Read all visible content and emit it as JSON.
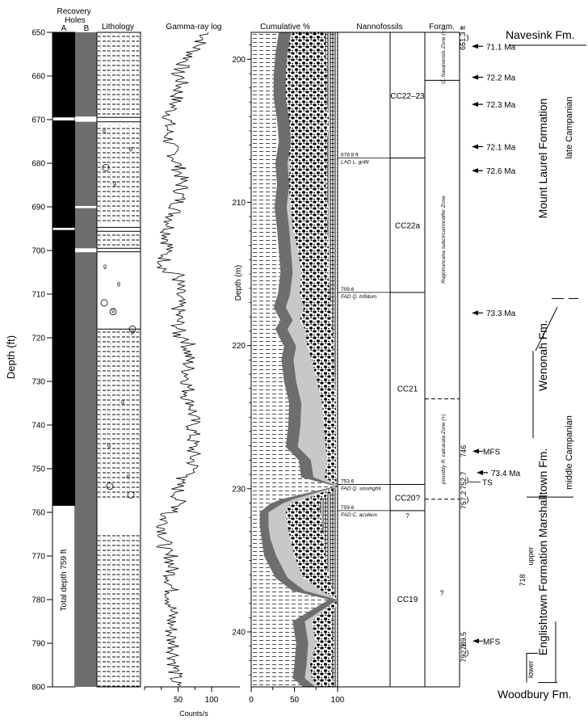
{
  "headers": {
    "recovery": "Recovery Holes",
    "hole_a": "A",
    "hole_b": "B",
    "lithology": "Lithology",
    "gamma": "Gamma-ray log",
    "cumulative": "Cumulative %",
    "nannofossils": "Nannofossils",
    "foram": "Foram."
  },
  "depth_ft": {
    "label": "Depth (ft)",
    "min": 650,
    "max": 800,
    "ticks": [
      650,
      660,
      670,
      680,
      690,
      700,
      710,
      720,
      730,
      740,
      750,
      760,
      770,
      780,
      790,
      800
    ]
  },
  "depth_m": {
    "label": "Depth (m)",
    "ticks": [
      200,
      210,
      220,
      230,
      240
    ]
  },
  "gamma_axis": {
    "label": "Counts/s",
    "ticks": [
      "50",
      "100"
    ],
    "tick_values": [
      50,
      100
    ]
  },
  "cum_axis": {
    "ticks": [
      "0",
      "50",
      "100"
    ],
    "tick_values": [
      0,
      50,
      100
    ]
  },
  "total_depth": "Total depth 759 ft",
  "recovery": {
    "hole_a_core_intervals_ft": [
      [
        650,
        669.5
      ],
      [
        670.2,
        694.8
      ],
      [
        695.3,
        758.5
      ]
    ],
    "hole_b_gaps_ft": [
      [
        669.3,
        670.5
      ],
      [
        689.8,
        690.3
      ],
      [
        699.5,
        700.4
      ]
    ]
  },
  "nanno_events": [
    {
      "depth": "678.8 ft",
      "label": "LAD L. grillii",
      "ft": 678.8
    },
    {
      "depth": "709.6",
      "label": "FAD Q. trifidum",
      "ft": 709.6
    },
    {
      "depth": "753.6",
      "label": "FAD Q. sissinghii",
      "ft": 753.6
    },
    {
      "depth": "759.6",
      "label": "FAD C. aculeus",
      "ft": 759.6
    }
  ],
  "nanno_zones": [
    {
      "label": "CC22–23",
      "top": 650,
      "bottom": 678.8
    },
    {
      "label": "CC22a",
      "top": 678.8,
      "bottom": 709.6
    },
    {
      "label": "CC21",
      "top": 709.6,
      "bottom": 753.6
    },
    {
      "label": "CC20?",
      "top": 753.6,
      "bottom": 759.6
    },
    {
      "label": "?",
      "top": 759.6,
      "bottom": 759.6
    },
    {
      "label": "CC19",
      "top": 759.6,
      "bottom": 800
    }
  ],
  "foram_zones": [
    {
      "label": "G. havanensis Zone (+)",
      "top": 650,
      "bottom": 661
    },
    {
      "label": "Rugotruncana subcircumnodifer Zone",
      "top": 661,
      "bottom": 734
    },
    {
      "label": "possibly R. calcarata Zone (+)",
      "top": 734,
      "bottom": 757
    },
    {
      "label": "?",
      "top": 757,
      "bottom": 800
    }
  ],
  "boundaries": [
    {
      "depth": "651.3 ft",
      "ft": 651.3
    },
    {
      "depth": "752.7",
      "ft": 752.7
    },
    {
      "depth": "757.2",
      "ft": 757.2
    },
    {
      "depth": "792.3",
      "ft": 792.3
    }
  ],
  "surfaces": [
    {
      "depth": "746",
      "label": "MFS",
      "ft": 746
    },
    {
      "depth": "",
      "label": "TS",
      "ft": 752.7
    },
    {
      "depth": "789.5",
      "label": "MFS",
      "ft": 789.5
    }
  ],
  "ages": [
    {
      "label": "71.1 Ma",
      "ft": 653.2
    },
    {
      "label": "72.2 Ma",
      "ft": 660.3
    },
    {
      "label": "72.3 Ma",
      "ft": 666.5
    },
    {
      "label": "72.1 Ma",
      "ft": 676.2
    },
    {
      "label": "72.6 Ma",
      "ft": 681.7
    },
    {
      "label": "73.3 Ma",
      "ft": 714.3
    },
    {
      "label": "73.4 Ma",
      "ft": 750.9
    }
  ],
  "formations": {
    "navesink": "Navesink Fm.",
    "mount_laurel": "Mount Laurel Formation",
    "late_campanian": "late Campanian",
    "wenonah": "Wenonah Fm.",
    "wenonah_depth": "718",
    "marshalltown": "Marshalltown Fm.",
    "middle_campanian": "middle Campanian",
    "englishtown": "Englishtown Formation",
    "upper": "upper",
    "lower": "lower",
    "woodbury": "Woodbury Fm."
  },
  "colors": {
    "dark": "#6e6e6e",
    "light": "#c8c8c8",
    "black": "#000000"
  },
  "gamma_seed": 7,
  "cumulative_profile": {
    "depth_ft": [
      650,
      655,
      660,
      665,
      670,
      675,
      680,
      685,
      690,
      695,
      700,
      705,
      710,
      713,
      716,
      718,
      722,
      725,
      730,
      735,
      740,
      745,
      748,
      752,
      754,
      757,
      758,
      760,
      763,
      766,
      770,
      775,
      778,
      780,
      785,
      790,
      795,
      798,
      800
    ],
    "b1": [
      32,
      28,
      26,
      26,
      30,
      32,
      28,
      30,
      27,
      30,
      32,
      34,
      31,
      26,
      34,
      28,
      38,
      35,
      38,
      44,
      43,
      40,
      55,
      58,
      98,
      35,
      22,
      10,
      10,
      12,
      15,
      28,
      48,
      90,
      48,
      52,
      50,
      48,
      60
    ],
    "b2": [
      48,
      40,
      38,
      35,
      32,
      40,
      45,
      43,
      46,
      48,
      54,
      58,
      56,
      61,
      56,
      62,
      65,
      70,
      76,
      82,
      84,
      86,
      88,
      85,
      100,
      62,
      45,
      40,
      42,
      45,
      50,
      60,
      82,
      98,
      70,
      75,
      68,
      70,
      78
    ],
    "b3": [
      85,
      86,
      88,
      87,
      90,
      88,
      88,
      86,
      89,
      88,
      90,
      89,
      91,
      92,
      92,
      94,
      95,
      96,
      97,
      98,
      98,
      98,
      98,
      98,
      100,
      82,
      78,
      80,
      82,
      84,
      86,
      90,
      95,
      100,
      92,
      95,
      93,
      94,
      97
    ]
  }
}
